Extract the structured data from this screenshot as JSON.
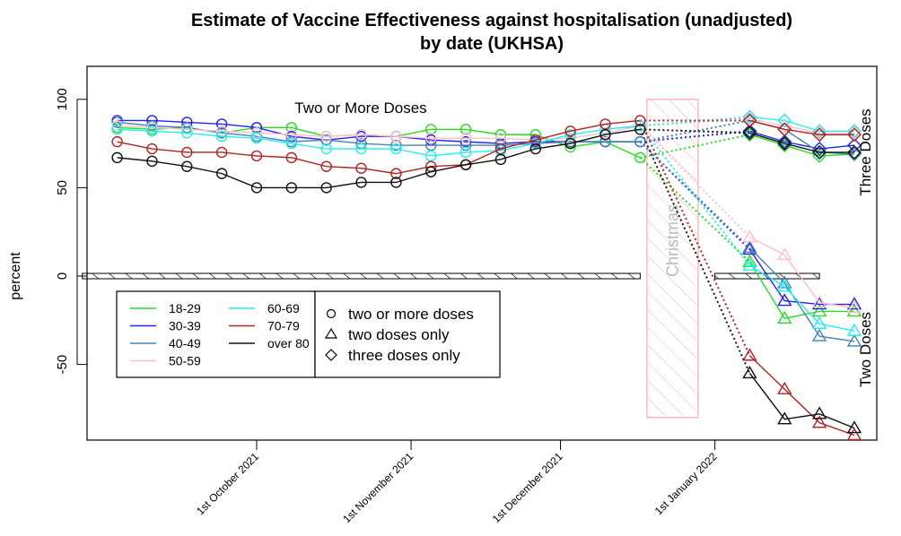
{
  "chart_data": {
    "type": "line",
    "title": "Estimate of Vaccine Effectiveness against hospitalisation (unadjusted)",
    "subtitle": "by date (UKHSA)",
    "xlabel": "",
    "ylabel": "percent",
    "ylim": [
      -93,
      112
    ],
    "xlim": [
      "2021-08-31",
      "2022-02-05"
    ],
    "y_ticks": [
      100,
      50,
      0,
      -50
    ],
    "x_ticks": [
      {
        "date": "2021-10-01",
        "label": "1st October 2021"
      },
      {
        "date": "2021-11-01",
        "label": "1st November 2021"
      },
      {
        "date": "2021-12-01",
        "label": "1st December 2021"
      },
      {
        "date": "2022-01-01",
        "label": "1st January 2022"
      }
    ],
    "grid": false,
    "annotations": {
      "two_or_more": "Two or More Doses",
      "three_doses": "Three Doses",
      "two_doses": "Two Doses",
      "christmas": "Christmas"
    },
    "christmas_period": {
      "start": "2021-12-18",
      "end": "2021-12-29",
      "ymin": -80,
      "ymax": 100
    },
    "zero_bars": [
      {
        "start": "2021-08-27",
        "end": "2021-12-17"
      },
      {
        "start": "2022-01-01",
        "end": "2022-01-22"
      }
    ],
    "x_two_or_more": [
      "2021-09-03",
      "2021-09-10",
      "2021-09-17",
      "2021-09-24",
      "2021-10-01",
      "2021-10-08",
      "2021-10-15",
      "2021-10-22",
      "2021-10-29",
      "2021-11-05",
      "2021-11-12",
      "2021-11-19",
      "2021-11-26",
      "2021-12-03",
      "2021-12-10",
      "2021-12-17"
    ],
    "x_after": [
      "2022-01-08",
      "2022-01-15",
      "2022-01-22",
      "2022-01-29"
    ],
    "series": [
      {
        "name": "18-29",
        "color": "#22dd22",
        "two_or_more": [
          84,
          83,
          84,
          81,
          84,
          84,
          79,
          80,
          79,
          83,
          83,
          80,
          80,
          73,
          76,
          67
        ],
        "three_doses": [
          80,
          74,
          68,
          69
        ],
        "two_doses": [
          8,
          -24,
          -20,
          -20
        ]
      },
      {
        "name": "30-39",
        "color": "#2222ee",
        "two_or_more": [
          88,
          88,
          87,
          86,
          84,
          79,
          77,
          79,
          79,
          77,
          76,
          75,
          76,
          76,
          76,
          76
        ],
        "three_doses": [
          82,
          76,
          72,
          74
        ],
        "two_doses": [
          15,
          -14,
          -16,
          -16
        ]
      },
      {
        "name": "40-49",
        "color": "#4682b4",
        "two_or_more": [
          87,
          85,
          84,
          81,
          79,
          76,
          77,
          75,
          74,
          74,
          74,
          74,
          75,
          76,
          76,
          76
        ],
        "three_doses": [
          88,
          83,
          70,
          69
        ],
        "two_doses": [
          16,
          -4,
          -34,
          -37
        ]
      },
      {
        "name": "50-59",
        "color": "#ffc0cb",
        "two_or_more": [
          85,
          84,
          83,
          82,
          81,
          80,
          79,
          80,
          79,
          78,
          78,
          78,
          77,
          78,
          81,
          85
        ],
        "three_doses": [
          89,
          85,
          81,
          81
        ],
        "two_doses": [
          22,
          12,
          -15,
          -18
        ]
      },
      {
        "name": "60-69",
        "color": "#22eeee",
        "two_or_more": [
          83,
          82,
          81,
          79,
          78,
          75,
          72,
          72,
          72,
          68,
          70,
          71,
          75,
          80,
          83,
          85
        ],
        "three_doses": [
          90,
          88,
          82,
          82
        ],
        "two_doses": [
          6,
          -6,
          -27,
          -31
        ]
      },
      {
        "name": "70-79",
        "color": "#b22222",
        "two_or_more": [
          76,
          72,
          70,
          70,
          68,
          67,
          62,
          61,
          58,
          62,
          63,
          72,
          77,
          82,
          86,
          88
        ],
        "three_doses": [
          88,
          83,
          80,
          80
        ],
        "two_doses": [
          -45,
          -64,
          -83,
          -90
        ]
      },
      {
        "name": "over 80",
        "color": "#111111",
        "two_or_more": [
          67,
          65,
          62,
          58,
          50,
          50,
          50,
          53,
          53,
          59,
          63,
          66,
          72,
          75,
          80,
          83
        ],
        "three_doses": [
          81,
          75,
          70,
          70
        ],
        "two_doses": [
          -55,
          -81,
          -78,
          -86
        ]
      }
    ],
    "legend": {
      "placement": "bottom-left",
      "age_groups": [
        "18-29",
        "30-39",
        "40-49",
        "50-59",
        "60-69",
        "70-79",
        "over 80"
      ],
      "markers": [
        {
          "symbol": "circle",
          "label": "two or more doses"
        },
        {
          "symbol": "triangle",
          "label": "two doses only"
        },
        {
          "symbol": "diamond",
          "label": "three doses only"
        }
      ]
    }
  }
}
